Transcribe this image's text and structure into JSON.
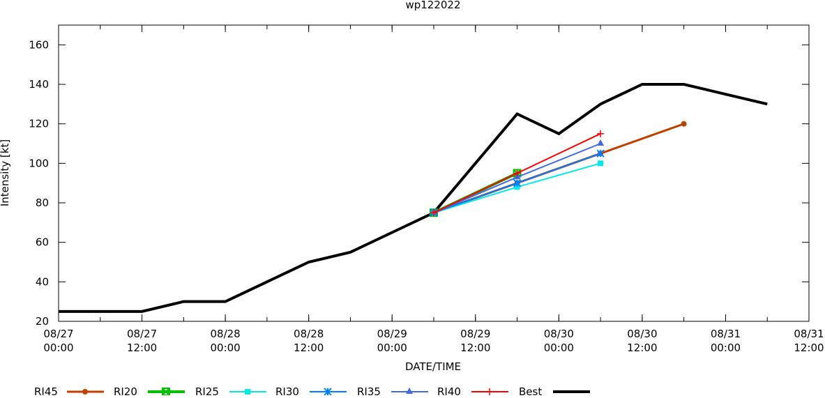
{
  "chart_data": {
    "type": "line",
    "title": "wp122022",
    "xlabel": "DATE/TIME",
    "ylabel": "Intensity [kt]",
    "x_unit": "hours since 08/27 00:00",
    "xlim": [
      0,
      108
    ],
    "ylim": [
      20,
      170
    ],
    "yticks": [
      20,
      40,
      60,
      80,
      100,
      120,
      140,
      160
    ],
    "xticks": [
      {
        "h": 0,
        "l1": "08/27",
        "l2": "00:00"
      },
      {
        "h": 12,
        "l1": "08/27",
        "l2": "12:00"
      },
      {
        "h": 24,
        "l1": "08/28",
        "l2": "00:00"
      },
      {
        "h": 36,
        "l1": "08/28",
        "l2": "12:00"
      },
      {
        "h": 48,
        "l1": "08/29",
        "l2": "00:00"
      },
      {
        "h": 60,
        "l1": "08/29",
        "l2": "12:00"
      },
      {
        "h": 72,
        "l1": "08/30",
        "l2": "00:00"
      },
      {
        "h": 84,
        "l1": "08/30",
        "l2": "12:00"
      },
      {
        "h": 96,
        "l1": "08/31",
        "l2": "00:00"
      },
      {
        "h": 108,
        "l1": "08/31",
        "l2": "12:00"
      }
    ],
    "legend_position": "bottom",
    "series": [
      {
        "name": "RI45",
        "color": "#c04000",
        "marker": "circle",
        "width": 3,
        "x": [
          54,
          66,
          78,
          90
        ],
        "y": [
          75,
          90,
          105,
          120
        ]
      },
      {
        "name": "RI20",
        "color": "#00c000",
        "marker": "xsquare",
        "width": 4,
        "x": [
          54,
          66
        ],
        "y": [
          75,
          95
        ]
      },
      {
        "name": "RI25",
        "color": "#00e8e8",
        "marker": "square",
        "width": 2,
        "x": [
          54,
          66,
          78
        ],
        "y": [
          75,
          88,
          100
        ]
      },
      {
        "name": "RI30",
        "color": "#0080ff",
        "marker": "asterisk",
        "width": 2,
        "x": [
          54,
          66,
          78
        ],
        "y": [
          75,
          90,
          105
        ]
      },
      {
        "name": "RI35",
        "color": "#4169e1",
        "marker": "triangle",
        "width": 2,
        "x": [
          54,
          66,
          78
        ],
        "y": [
          75,
          93,
          110
        ]
      },
      {
        "name": "RI40",
        "color": "#ff0000",
        "marker": "plus",
        "width": 2,
        "x": [
          54,
          66,
          78
        ],
        "y": [
          75,
          95,
          115
        ]
      },
      {
        "name": "Best",
        "color": "#000000",
        "marker": "none",
        "width": 4,
        "x": [
          0,
          6,
          12,
          18,
          24,
          30,
          36,
          42,
          48,
          54,
          60,
          66,
          72,
          78,
          84,
          90,
          96,
          102
        ],
        "y": [
          25,
          25,
          25,
          30,
          30,
          40,
          50,
          55,
          65,
          75,
          100,
          125,
          115,
          130,
          140,
          140,
          135,
          130
        ]
      }
    ]
  }
}
